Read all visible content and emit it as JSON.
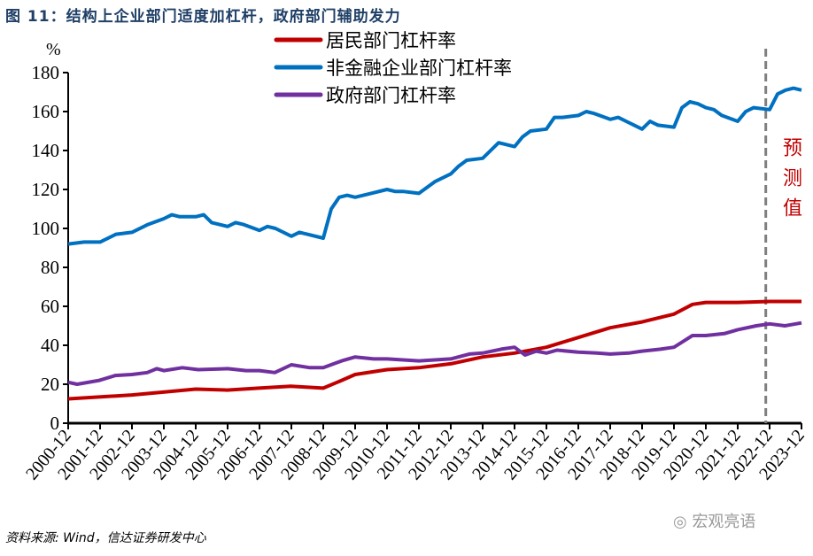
{
  "figure_title": "图 11：结构上企业部门适度加杠杆，政府部门辅助发力",
  "source": "资料来源: Wind，信达证券研发中心",
  "watermark": "宏观亮语",
  "chart_data": {
    "type": "line",
    "title": "图 11：结构上企业部门适度加杠杆，政府部门辅助发力",
    "ylabel": "%",
    "ylim": [
      0,
      180
    ],
    "yticks": [
      0,
      20,
      40,
      60,
      80,
      100,
      120,
      140,
      160,
      180
    ],
    "xlim": [
      2000.92,
      2023.92
    ],
    "xtick_labels": [
      "2000-12",
      "2001-12",
      "2002-12",
      "2003-12",
      "2004-12",
      "2005-12",
      "2006-12",
      "2007-12",
      "2008-12",
      "2009-12",
      "2010-12",
      "2011-12",
      "2012-12",
      "2013-12",
      "2014-12",
      "2015-12",
      "2016-12",
      "2017-12",
      "2018-12",
      "2019-12",
      "2020-12",
      "2021-12",
      "2022-12",
      "2023-12"
    ],
    "grid": false,
    "legend_position": "top-center",
    "forecast_marker": {
      "x": 2022.8,
      "label": "预测值",
      "color": "#c00000"
    },
    "series": [
      {
        "name": "居民部门杠杆率",
        "color": "#c00000",
        "points": [
          [
            2000.92,
            12.5
          ],
          [
            2002.92,
            14.5
          ],
          [
            2004.92,
            17.5
          ],
          [
            2005.9,
            17
          ],
          [
            2006.9,
            18
          ],
          [
            2007.9,
            19
          ],
          [
            2008.92,
            18
          ],
          [
            2009.5,
            22
          ],
          [
            2009.92,
            25
          ],
          [
            2010.92,
            27.5
          ],
          [
            2011.92,
            28.5
          ],
          [
            2012.92,
            30.5
          ],
          [
            2013.92,
            34
          ],
          [
            2014.92,
            36
          ],
          [
            2015.92,
            39
          ],
          [
            2016.92,
            44
          ],
          [
            2017.92,
            49
          ],
          [
            2018.92,
            52
          ],
          [
            2019.92,
            56
          ],
          [
            2020.5,
            61
          ],
          [
            2020.92,
            62
          ],
          [
            2021.92,
            62
          ],
          [
            2022.92,
            62.5
          ],
          [
            2023.92,
            62.5
          ]
        ]
      },
      {
        "name": "非金融企业部门杠杆率",
        "color": "#0070c0",
        "points": [
          [
            2000.92,
            92
          ],
          [
            2001.42,
            93
          ],
          [
            2001.92,
            93
          ],
          [
            2002.42,
            97
          ],
          [
            2002.92,
            98
          ],
          [
            2003.42,
            102
          ],
          [
            2003.92,
            105
          ],
          [
            2004.17,
            107
          ],
          [
            2004.42,
            106
          ],
          [
            2004.92,
            106
          ],
          [
            2005.17,
            107
          ],
          [
            2005.42,
            103
          ],
          [
            2005.92,
            101
          ],
          [
            2006.17,
            103
          ],
          [
            2006.42,
            102
          ],
          [
            2006.92,
            99
          ],
          [
            2007.17,
            101
          ],
          [
            2007.42,
            100
          ],
          [
            2007.92,
            96
          ],
          [
            2008.17,
            98
          ],
          [
            2008.42,
            97
          ],
          [
            2008.92,
            95
          ],
          [
            2009.17,
            110
          ],
          [
            2009.42,
            116
          ],
          [
            2009.67,
            117
          ],
          [
            2009.92,
            116
          ],
          [
            2010.42,
            118
          ],
          [
            2010.92,
            120
          ],
          [
            2011.17,
            119
          ],
          [
            2011.42,
            119
          ],
          [
            2011.92,
            118
          ],
          [
            2012.42,
            124
          ],
          [
            2012.92,
            128
          ],
          [
            2013.17,
            132
          ],
          [
            2013.42,
            135
          ],
          [
            2013.92,
            136
          ],
          [
            2014.17,
            140
          ],
          [
            2014.42,
            144
          ],
          [
            2014.92,
            142
          ],
          [
            2015.17,
            147
          ],
          [
            2015.42,
            150
          ],
          [
            2015.92,
            151
          ],
          [
            2016.17,
            157
          ],
          [
            2016.42,
            157
          ],
          [
            2016.92,
            158
          ],
          [
            2017.17,
            160
          ],
          [
            2017.42,
            159
          ],
          [
            2017.92,
            156
          ],
          [
            2018.17,
            157
          ],
          [
            2018.42,
            155
          ],
          [
            2018.92,
            151
          ],
          [
            2019.17,
            155
          ],
          [
            2019.42,
            153
          ],
          [
            2019.92,
            152
          ],
          [
            2020.17,
            162
          ],
          [
            2020.42,
            165
          ],
          [
            2020.67,
            164
          ],
          [
            2020.92,
            162
          ],
          [
            2021.17,
            161
          ],
          [
            2021.42,
            158
          ],
          [
            2021.92,
            155
          ],
          [
            2022.17,
            160
          ],
          [
            2022.42,
            162
          ],
          [
            2022.92,
            161
          ],
          [
            2023.17,
            169
          ],
          [
            2023.42,
            171
          ],
          [
            2023.67,
            172
          ],
          [
            2023.92,
            171
          ]
        ]
      },
      {
        "name": "政府部门杠杆率",
        "color": "#7030a0",
        "points": [
          [
            2000.92,
            21
          ],
          [
            2001.2,
            20
          ],
          [
            2001.9,
            22
          ],
          [
            2002.4,
            24.5
          ],
          [
            2002.92,
            25
          ],
          [
            2003.4,
            26
          ],
          [
            2003.7,
            28
          ],
          [
            2003.92,
            27
          ],
          [
            2004.5,
            28.5
          ],
          [
            2005.0,
            27.5
          ],
          [
            2005.92,
            28
          ],
          [
            2006.5,
            27
          ],
          [
            2006.92,
            27
          ],
          [
            2007.4,
            26
          ],
          [
            2007.92,
            30
          ],
          [
            2008.5,
            28.5
          ],
          [
            2008.92,
            28.5
          ],
          [
            2009.5,
            32
          ],
          [
            2009.92,
            34
          ],
          [
            2010.5,
            33
          ],
          [
            2010.92,
            33
          ],
          [
            2011.92,
            32
          ],
          [
            2012.92,
            33
          ],
          [
            2013.5,
            35.5
          ],
          [
            2013.92,
            36
          ],
          [
            2014.5,
            38
          ],
          [
            2014.92,
            39
          ],
          [
            2015.25,
            35
          ],
          [
            2015.6,
            37
          ],
          [
            2015.92,
            36
          ],
          [
            2016.25,
            37.5
          ],
          [
            2016.92,
            36.5
          ],
          [
            2017.5,
            36
          ],
          [
            2017.92,
            35.5
          ],
          [
            2018.5,
            36
          ],
          [
            2018.92,
            37
          ],
          [
            2019.5,
            38
          ],
          [
            2019.92,
            39
          ],
          [
            2020.5,
            45
          ],
          [
            2020.92,
            45
          ],
          [
            2021.5,
            46
          ],
          [
            2021.92,
            48
          ],
          [
            2022.5,
            50
          ],
          [
            2022.92,
            51
          ],
          [
            2023.4,
            50
          ],
          [
            2023.92,
            51.5
          ]
        ]
      }
    ]
  }
}
